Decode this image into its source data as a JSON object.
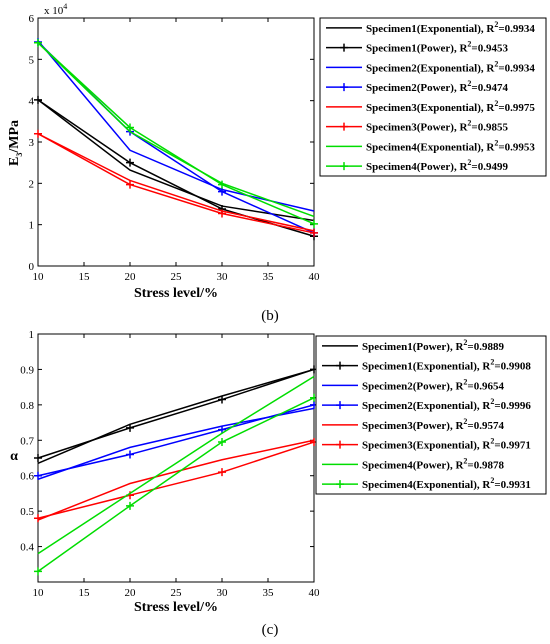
{
  "chart_data": [
    {
      "type": "line",
      "panel_label": "(b)",
      "xlabel": "Stress level/%",
      "ylabel": "E",
      "ylabel_sub": "3",
      "ylabel_unit": "/MPa",
      "y_multiplier": "x 10",
      "y_multiplier_exp": "4",
      "xlim": [
        10,
        40
      ],
      "ylim": [
        0,
        6
      ],
      "x_ticks": [
        "10",
        "15",
        "20",
        "25",
        "30",
        "35",
        "40"
      ],
      "y_ticks": [
        "0",
        "1",
        "2",
        "3",
        "4",
        "5",
        "6"
      ],
      "legend_position": "outside-right",
      "series": [
        {
          "name": "Specimen1(Exponential)",
          "r2": "=0.9934",
          "marker": "none",
          "color": "#000000",
          "x": [
            10,
            20,
            30,
            40
          ],
          "y": [
            4.02,
            2.32,
            1.45,
            1.1
          ]
        },
        {
          "name": "Specimen1(Power)",
          "r2": "=0.9453",
          "marker": "plus",
          "color": "#000000",
          "x": [
            10,
            20,
            30,
            40
          ],
          "y": [
            4.02,
            2.5,
            1.38,
            0.72
          ]
        },
        {
          "name": "Specimen2(Exponential)",
          "r2": "=0.9934",
          "marker": "none",
          "color": "#0000ff",
          "x": [
            10,
            20,
            30,
            40
          ],
          "y": [
            5.45,
            2.8,
            1.85,
            1.33
          ]
        },
        {
          "name": "Specimen2(Power)",
          "r2": "=0.9474",
          "marker": "plus",
          "color": "#0000ff",
          "x": [
            10,
            20,
            30,
            40
          ],
          "y": [
            5.42,
            3.25,
            1.8,
            0.8
          ]
        },
        {
          "name": "Specimen3(Exponential)",
          "r2": "=0.9975",
          "marker": "none",
          "color": "#ff0000",
          "x": [
            10,
            20,
            30,
            40
          ],
          "y": [
            3.2,
            2.07,
            1.33,
            0.85
          ]
        },
        {
          "name": "Specimen3(Power)",
          "r2": "=0.9855",
          "marker": "plus",
          "color": "#ff0000",
          "x": [
            10,
            20,
            30,
            40
          ],
          "y": [
            3.2,
            1.97,
            1.27,
            0.8
          ]
        },
        {
          "name": "Specimen4(Exponential)",
          "r2": "=0.9953",
          "marker": "none",
          "color": "#00dd00",
          "x": [
            10,
            20,
            30,
            40
          ],
          "y": [
            5.4,
            3.25,
            2.0,
            1.2
          ]
        },
        {
          "name": "Specimen4(Power)",
          "r2": "=0.9499",
          "marker": "plus",
          "color": "#00dd00",
          "x": [
            10,
            20,
            30,
            40
          ],
          "y": [
            5.4,
            3.35,
            1.97,
            1.02
          ]
        }
      ]
    },
    {
      "type": "line",
      "panel_label": "(c)",
      "xlabel": "Stress level/%",
      "ylabel": "α",
      "xlim": [
        10,
        40
      ],
      "ylim": [
        0.3,
        1.0
      ],
      "x_ticks": [
        "10",
        "15",
        "20",
        "25",
        "30",
        "35",
        "40"
      ],
      "y_ticks": [
        "0.4",
        "0.5",
        "0.6",
        "0.7",
        "0.8",
        "0.9",
        "1"
      ],
      "legend_position": "top-right",
      "series": [
        {
          "name": "Specimen1(Power)",
          "r2": "=0.9889",
          "marker": "none",
          "color": "#000000",
          "x": [
            10,
            20,
            30,
            40
          ],
          "y": [
            0.635,
            0.745,
            0.825,
            0.9
          ]
        },
        {
          "name": "Specimen1(Exponential)",
          "r2": "=0.9908",
          "marker": "plus",
          "color": "#000000",
          "x": [
            10,
            20,
            30,
            40
          ],
          "y": [
            0.65,
            0.735,
            0.815,
            0.9
          ]
        },
        {
          "name": "Specimen2(Power)",
          "r2": "=0.9654",
          "marker": "none",
          "color": "#0000ff",
          "x": [
            10,
            20,
            30,
            40
          ],
          "y": [
            0.59,
            0.68,
            0.74,
            0.79
          ]
        },
        {
          "name": "Specimen2(Exponential)",
          "r2": "=0.9996",
          "marker": "plus",
          "color": "#0000ff",
          "x": [
            10,
            20,
            30,
            40
          ],
          "y": [
            0.6,
            0.66,
            0.73,
            0.8
          ]
        },
        {
          "name": "Specimen3(Power)",
          "r2": "=0.9574",
          "marker": "none",
          "color": "#ff0000",
          "x": [
            10,
            20,
            30,
            40
          ],
          "y": [
            0.475,
            0.578,
            0.645,
            0.7
          ]
        },
        {
          "name": "Specimen3(Exponential)",
          "r2": "=0.9971",
          "marker": "plus",
          "color": "#ff0000",
          "x": [
            10,
            20,
            30,
            40
          ],
          "y": [
            0.48,
            0.545,
            0.61,
            0.695
          ]
        },
        {
          "name": "Specimen4(Power)",
          "r2": "=0.9878",
          "marker": "none",
          "color": "#00dd00",
          "x": [
            10,
            20,
            30,
            40
          ],
          "y": [
            0.38,
            0.55,
            0.72,
            0.88
          ]
        },
        {
          "name": "Specimen4(Exponential)",
          "r2": "=0.9931",
          "marker": "plus",
          "color": "#00dd00",
          "x": [
            10,
            20,
            30,
            40
          ],
          "y": [
            0.33,
            0.515,
            0.695,
            0.82
          ]
        }
      ]
    }
  ]
}
